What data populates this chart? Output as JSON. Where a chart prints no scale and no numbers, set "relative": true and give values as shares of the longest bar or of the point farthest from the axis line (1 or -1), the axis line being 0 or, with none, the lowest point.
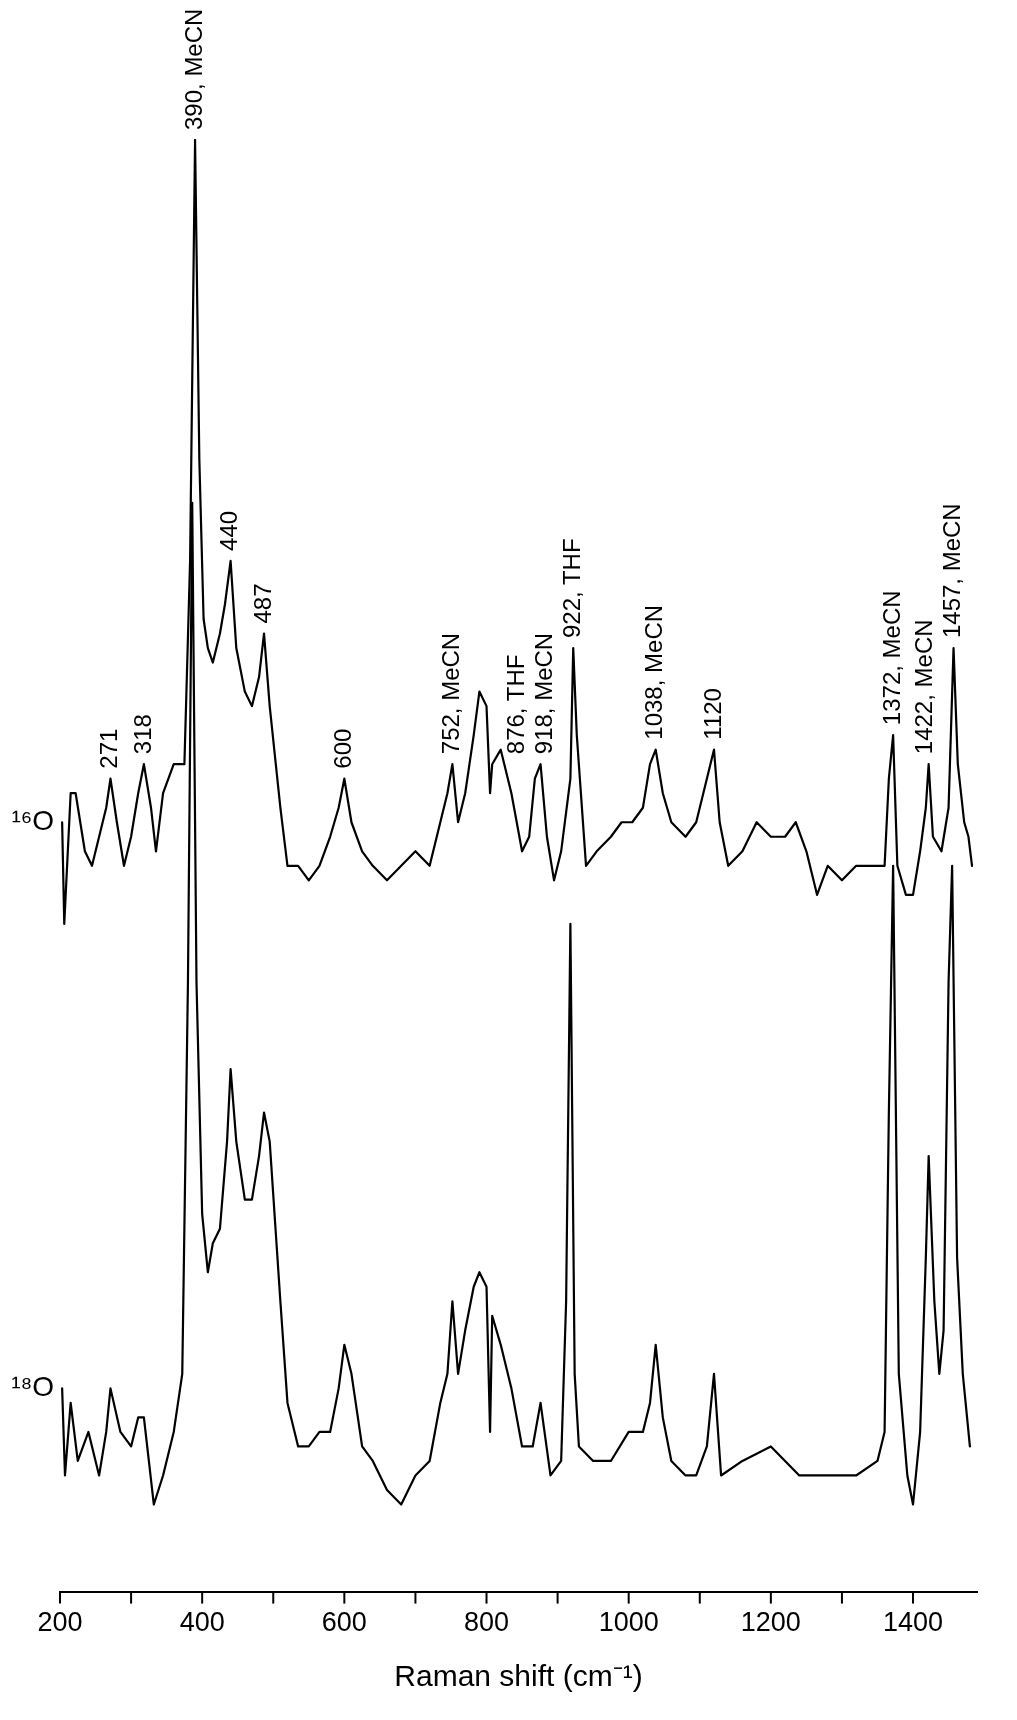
{
  "chart_data": {
    "type": "line",
    "relative": true,
    "grid": false,
    "marker": "none",
    "xlabel": "Raman shift (cm⁻¹)",
    "xlim": [
      200,
      1490
    ],
    "xticks": [
      200,
      {
        "value": 300,
        "label": null
      },
      400,
      {
        "value": 500,
        "label": null
      },
      600,
      {
        "value": 700,
        "label": null
      },
      800,
      {
        "value": 900,
        "label": null
      },
      1000,
      {
        "value": 1100,
        "label": null
      },
      1200,
      {
        "value": 1300,
        "label": null
      },
      1400
    ],
    "series": [
      {
        "name": "¹⁶O",
        "color": "#000000",
        "x": [
          203,
          206,
          215,
          222,
          235,
          245,
          255,
          265,
          271,
          280,
          290,
          300,
          310,
          318,
          328,
          335,
          345,
          360,
          375,
          383,
          390,
          396,
          402,
          408,
          415,
          425,
          432,
          440,
          448,
          460,
          470,
          480,
          487,
          495,
          510,
          520,
          535,
          550,
          565,
          580,
          592,
          600,
          610,
          625,
          640,
          660,
          680,
          700,
          720,
          735,
          745,
          752,
          760,
          770,
          782,
          790,
          800,
          805,
          808,
          820,
          835,
          850,
          860,
          868,
          876,
          885,
          895,
          905,
          918,
          922,
          927,
          940,
          955,
          975,
          990,
          1005,
          1020,
          1030,
          1038,
          1048,
          1060,
          1080,
          1095,
          1110,
          1120,
          1128,
          1140,
          1160,
          1180,
          1200,
          1220,
          1235,
          1250,
          1265,
          1280,
          1300,
          1320,
          1340,
          1360,
          1366,
          1372,
          1378,
          1390,
          1400,
          1410,
          1418,
          1422,
          1428,
          1440,
          1450,
          1457,
          1463,
          1472,
          1478,
          1483
        ],
        "values": [
          0.53,
          0.46,
          0.55,
          0.55,
          0.51,
          0.5,
          0.52,
          0.54,
          0.56,
          0.53,
          0.5,
          0.52,
          0.55,
          0.57,
          0.54,
          0.51,
          0.55,
          0.57,
          0.57,
          0.71,
          1,
          0.78,
          0.67,
          0.65,
          0.64,
          0.66,
          0.68,
          0.71,
          0.65,
          0.62,
          0.61,
          0.63,
          0.66,
          0.61,
          0.54,
          0.5,
          0.5,
          0.49,
          0.5,
          0.52,
          0.54,
          0.56,
          0.53,
          0.51,
          0.5,
          0.49,
          0.5,
          0.51,
          0.5,
          0.53,
          0.55,
          0.57,
          0.53,
          0.55,
          0.59,
          0.62,
          0.61,
          0.55,
          0.57,
          0.58,
          0.55,
          0.51,
          0.52,
          0.56,
          0.57,
          0.52,
          0.49,
          0.51,
          0.56,
          0.65,
          0.59,
          0.5,
          0.51,
          0.52,
          0.53,
          0.53,
          0.54,
          0.57,
          0.58,
          0.55,
          0.53,
          0.52,
          0.53,
          0.56,
          0.58,
          0.53,
          0.5,
          0.51,
          0.53,
          0.52,
          0.52,
          0.53,
          0.51,
          0.48,
          0.5,
          0.49,
          0.5,
          0.5,
          0.5,
          0.56,
          0.59,
          0.5,
          0.48,
          0.48,
          0.51,
          0.54,
          0.57,
          0.52,
          0.51,
          0.54,
          0.65,
          0.57,
          0.53,
          0.52,
          0.5
        ]
      },
      {
        "name": "¹⁸O",
        "color": "#000000",
        "x": [
          203,
          207,
          215,
          225,
          240,
          255,
          265,
          271,
          285,
          300,
          310,
          318,
          325,
          332,
          345,
          360,
          372,
          380,
          386,
          392,
          400,
          408,
          415,
          425,
          435,
          440,
          448,
          460,
          470,
          480,
          487,
          495,
          510,
          520,
          535,
          550,
          565,
          580,
          592,
          600,
          610,
          625,
          640,
          660,
          680,
          700,
          720,
          735,
          745,
          752,
          760,
          770,
          782,
          790,
          800,
          805,
          808,
          820,
          835,
          850,
          865,
          876,
          890,
          905,
          912,
          918,
          924,
          930,
          950,
          975,
          1000,
          1020,
          1030,
          1038,
          1048,
          1060,
          1080,
          1095,
          1110,
          1120,
          1130,
          1160,
          1200,
          1240,
          1280,
          1320,
          1350,
          1360,
          1366,
          1372,
          1380,
          1392,
          1400,
          1410,
          1418,
          1422,
          1430,
          1437,
          1443,
          1450,
          1455,
          1462,
          1470,
          1476,
          1480
        ],
        "values": [
          0.14,
          0.08,
          0.13,
          0.09,
          0.11,
          0.08,
          0.11,
          0.14,
          0.11,
          0.1,
          0.12,
          0.12,
          0.09,
          0.06,
          0.08,
          0.11,
          0.15,
          0.42,
          0.75,
          0.42,
          0.26,
          0.22,
          0.24,
          0.25,
          0.31,
          0.36,
          0.31,
          0.27,
          0.27,
          0.3,
          0.33,
          0.31,
          0.2,
          0.13,
          0.1,
          0.1,
          0.11,
          0.11,
          0.14,
          0.17,
          0.15,
          0.1,
          0.09,
          0.07,
          0.06,
          0.08,
          0.09,
          0.13,
          0.15,
          0.2,
          0.15,
          0.18,
          0.21,
          0.22,
          0.21,
          0.11,
          0.19,
          0.17,
          0.14,
          0.1,
          0.1,
          0.13,
          0.08,
          0.09,
          0.2,
          0.46,
          0.15,
          0.1,
          0.09,
          0.09,
          0.11,
          0.11,
          0.13,
          0.17,
          0.12,
          0.09,
          0.08,
          0.08,
          0.1,
          0.15,
          0.08,
          0.09,
          0.1,
          0.08,
          0.08,
          0.08,
          0.09,
          0.11,
          0.33,
          0.5,
          0.15,
          0.08,
          0.06,
          0.11,
          0.23,
          0.3,
          0.2,
          0.15,
          0.18,
          0.42,
          0.5,
          0.23,
          0.15,
          0.12,
          0.1
        ]
      }
    ],
    "annotations": [
      {
        "text": "271",
        "x": 271,
        "y": 0.56
      },
      {
        "text": "318",
        "x": 318,
        "y": 0.57
      },
      {
        "text": "390, MeCN",
        "x": 390,
        "y": 1
      },
      {
        "text": "440",
        "x": 440,
        "y": 0.71
      },
      {
        "text": "487",
        "x": 487,
        "y": 0.66
      },
      {
        "text": "600",
        "x": 600,
        "y": 0.56
      },
      {
        "text": "752, MeCN",
        "x": 752,
        "y": 0.57
      },
      {
        "text": "876, THF",
        "x": 876,
        "y": 0.57
      },
      {
        "text": "918, MeCN",
        "x": 918,
        "y": 0.56
      },
      {
        "text": "922, THF",
        "x": 922,
        "y": 0.65
      },
      {
        "text": "1038, MeCN",
        "x": 1038,
        "y": 0.58
      },
      {
        "text": "1120",
        "x": 1120,
        "y": 0.58
      },
      {
        "text": "1372, MeCN",
        "x": 1372,
        "y": 0.59
      },
      {
        "text": "1422, MeCN",
        "x": 1422,
        "y": 0.57
      },
      {
        "text": "1457, MeCN",
        "x": 1457,
        "y": 0.65
      }
    ]
  }
}
